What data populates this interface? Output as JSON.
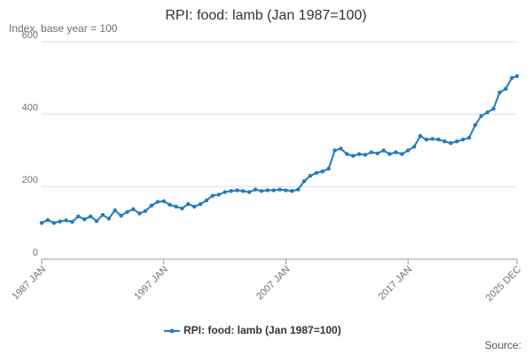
{
  "chart_data": {
    "type": "line",
    "title": "RPI: food: lamb (Jan 1987=100)",
    "y_label": "Index, base year = 100",
    "source": "Source:",
    "x": [
      "1987-01",
      "1987-07",
      "1988-01",
      "1988-07",
      "1989-01",
      "1989-07",
      "1990-01",
      "1990-07",
      "1991-01",
      "1991-07",
      "1992-01",
      "1992-07",
      "1993-01",
      "1993-07",
      "1994-01",
      "1994-07",
      "1995-01",
      "1995-07",
      "1996-01",
      "1996-07",
      "1997-01",
      "1997-07",
      "1998-01",
      "1998-07",
      "1999-01",
      "1999-07",
      "2000-01",
      "2000-07",
      "2001-01",
      "2001-07",
      "2002-01",
      "2002-07",
      "2003-01",
      "2003-07",
      "2004-01",
      "2004-07",
      "2005-01",
      "2005-07",
      "2006-01",
      "2006-07",
      "2007-01",
      "2007-07",
      "2008-01",
      "2008-07",
      "2009-01",
      "2009-07",
      "2010-01",
      "2010-07",
      "2011-01",
      "2011-07",
      "2012-01",
      "2012-07",
      "2013-01",
      "2013-07",
      "2014-01",
      "2014-07",
      "2015-01",
      "2015-07",
      "2016-01",
      "2016-07",
      "2017-01",
      "2017-07",
      "2018-01",
      "2018-07",
      "2019-01",
      "2019-07",
      "2020-01",
      "2020-07",
      "2021-01",
      "2021-07",
      "2022-01",
      "2022-07",
      "2023-01",
      "2023-07",
      "2024-01",
      "2024-07",
      "2025-01",
      "2025-07",
      "2025-12"
    ],
    "series": [
      {
        "name": "RPI: food: lamb (Jan 1987=100)",
        "color": "#1f7bc0",
        "values": [
          100,
          108,
          100,
          104,
          107,
          103,
          118,
          110,
          118,
          105,
          122,
          112,
          135,
          120,
          130,
          138,
          126,
          133,
          148,
          158,
          160,
          150,
          145,
          140,
          152,
          145,
          152,
          162,
          175,
          178,
          185,
          188,
          190,
          188,
          185,
          192,
          188,
          190,
          190,
          192,
          190,
          188,
          192,
          215,
          230,
          238,
          242,
          250,
          300,
          305,
          290,
          285,
          290,
          288,
          295,
          292,
          300,
          290,
          295,
          290,
          300,
          310,
          340,
          330,
          332,
          330,
          325,
          320,
          325,
          330,
          335,
          370,
          395,
          405,
          415,
          460,
          470,
          500,
          505
        ]
      }
    ],
    "xlim": [
      "1987-01",
      "2025-12"
    ],
    "xticks": [
      {
        "value": "1987-01",
        "label": "1987 JAN"
      },
      {
        "value": "1997-01",
        "label": "1997 JAN"
      },
      {
        "value": "2007-01",
        "label": "2007 JAN"
      },
      {
        "value": "2017-01",
        "label": "2017 JAN"
      },
      {
        "value": "2025-12",
        "label": "2025 DEC"
      }
    ],
    "ylim": [
      0,
      600
    ],
    "yticks": [
      0,
      200,
      400,
      600
    ],
    "grid": true
  }
}
